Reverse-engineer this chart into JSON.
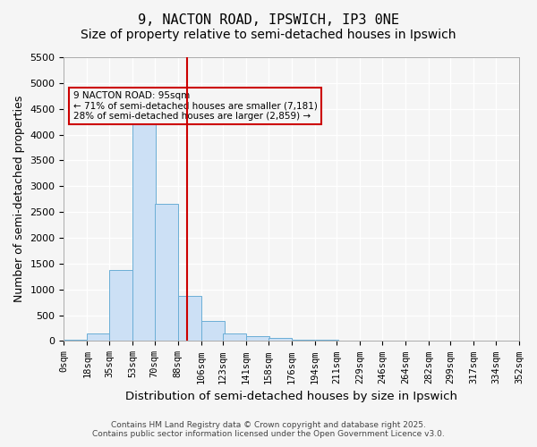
{
  "title": "9, NACTON ROAD, IPSWICH, IP3 0NE",
  "subtitle": "Size of property relative to semi-detached houses in Ipswich",
  "xlabel": "Distribution of semi-detached houses by size in Ipswich",
  "ylabel": "Number of semi-detached properties",
  "bin_labels": [
    "0sqm",
    "18sqm",
    "35sqm",
    "53sqm",
    "70sqm",
    "88sqm",
    "106sqm",
    "123sqm",
    "141sqm",
    "158sqm",
    "176sqm",
    "194sqm",
    "211sqm",
    "229sqm",
    "246sqm",
    "264sqm",
    "282sqm",
    "299sqm",
    "317sqm",
    "334sqm",
    "352sqm"
  ],
  "bin_edges": [
    0,
    18,
    35,
    53,
    70,
    88,
    106,
    123,
    141,
    158,
    176,
    194,
    211,
    229,
    246,
    264,
    282,
    299,
    317,
    334,
    352
  ],
  "bar_heights": [
    30,
    150,
    1380,
    4300,
    2660,
    880,
    390,
    150,
    100,
    65,
    30,
    20,
    5,
    0,
    0,
    0,
    0,
    0,
    0,
    0
  ],
  "bar_color": "#cce0f5",
  "bar_edgecolor": "#6baed6",
  "property_size": 95,
  "vline_color": "#cc0000",
  "annotation_text": "9 NACTON ROAD: 95sqm\n← 71% of semi-detached houses are smaller (7,181)\n28% of semi-detached houses are larger (2,859) →",
  "annotation_box_edgecolor": "#cc0000",
  "ylim": [
    0,
    5500
  ],
  "yticks": [
    0,
    500,
    1000,
    1500,
    2000,
    2500,
    3000,
    3500,
    4000,
    4500,
    5000,
    5500
  ],
  "background_color": "#f5f5f5",
  "grid_color": "#ffffff",
  "footer": "Contains HM Land Registry data © Crown copyright and database right 2025.\nContains public sector information licensed under the Open Government Licence v3.0.",
  "title_fontsize": 11,
  "subtitle_fontsize": 10,
  "axis_fontsize": 9,
  "tick_fontsize": 7.5
}
